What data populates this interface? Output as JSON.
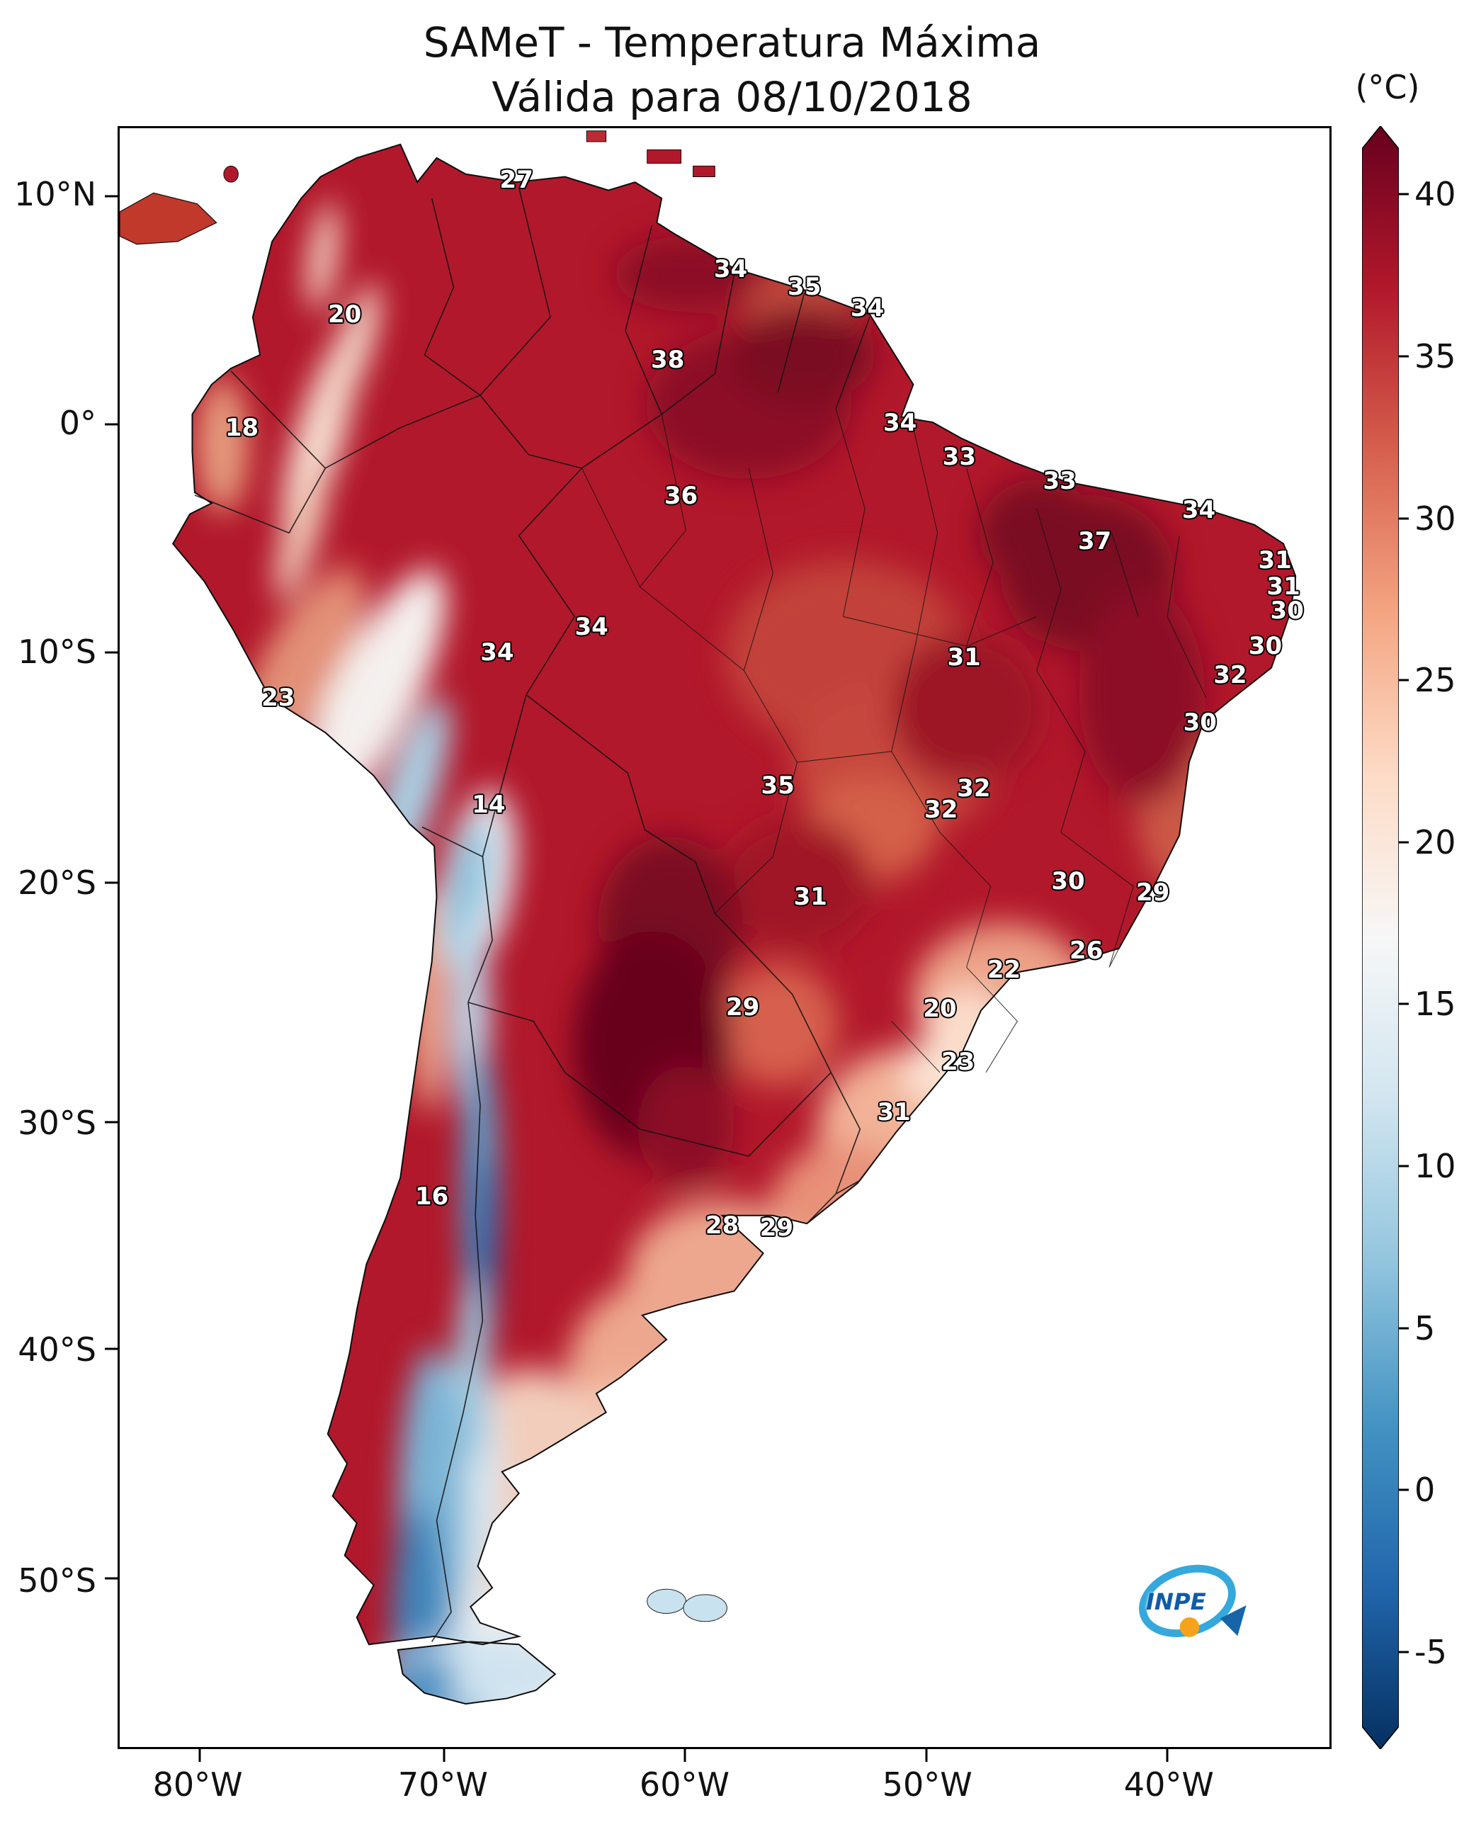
{
  "title": {
    "line1": "SAMeT - Temperatura Máxima",
    "line2": "Válida para 08/10/2018"
  },
  "colorbar": {
    "unit_label": "(°C)",
    "ticks": [
      "40",
      "35",
      "30",
      "25",
      "20",
      "15",
      "10",
      "5",
      "0",
      "-5"
    ],
    "colors": [
      "#67001f",
      "#b2182b",
      "#d6604d",
      "#f4a582",
      "#fddbc7",
      "#f7f7f7",
      "#d1e5f0",
      "#92c5de",
      "#4393c3",
      "#2166ac",
      "#053061"
    ]
  },
  "axes": {
    "lat_ticks": [
      "10°N",
      "0°",
      "10°S",
      "20°S",
      "30°S",
      "40°S",
      "50°S"
    ],
    "lon_ticks": [
      "80°W",
      "70°W",
      "60°W",
      "50°W",
      "40°W"
    ]
  },
  "map_colors": {
    "hottest": "#67001f",
    "hot": "#b2182b",
    "warm": "#d6604d",
    "mild": "#fddbc7",
    "neutral": "#f7f7f7",
    "cool": "#92c5de",
    "cold": "#2166ac",
    "coldest": "#053061"
  },
  "chart_data": {
    "type": "heatmap",
    "title": "SAMeT - Temperatura Máxima",
    "subtitle": "Válida para 08/10/2018",
    "unit": "°C",
    "region": "South America",
    "colorbar_range": [
      -5,
      40
    ],
    "point_labels": [
      {
        "value": 27,
        "x": 32.8,
        "y": 3.2
      },
      {
        "value": 34,
        "x": 50.5,
        "y": 8.7
      },
      {
        "value": 35,
        "x": 56.6,
        "y": 9.8
      },
      {
        "value": 34,
        "x": 61.8,
        "y": 11.1
      },
      {
        "value": 20,
        "x": 18.6,
        "y": 11.5
      },
      {
        "value": 38,
        "x": 45.3,
        "y": 14.3
      },
      {
        "value": 18,
        "x": 10.1,
        "y": 18.5
      },
      {
        "value": 34,
        "x": 64.5,
        "y": 18.2
      },
      {
        "value": 33,
        "x": 69.4,
        "y": 20.3
      },
      {
        "value": 33,
        "x": 77.7,
        "y": 21.8
      },
      {
        "value": 34,
        "x": 89.2,
        "y": 23.6
      },
      {
        "value": 36,
        "x": 46.4,
        "y": 22.7
      },
      {
        "value": 37,
        "x": 80.6,
        "y": 25.5
      },
      {
        "value": 31,
        "x": 95.5,
        "y": 26.7
      },
      {
        "value": 31,
        "x": 96.2,
        "y": 28.3
      },
      {
        "value": 30,
        "x": 96.5,
        "y": 29.8
      },
      {
        "value": 34,
        "x": 39.0,
        "y": 30.8
      },
      {
        "value": 34,
        "x": 31.2,
        "y": 32.4
      },
      {
        "value": 31,
        "x": 69.8,
        "y": 32.7
      },
      {
        "value": 30,
        "x": 94.7,
        "y": 32.0
      },
      {
        "value": 32,
        "x": 91.8,
        "y": 33.8
      },
      {
        "value": 23,
        "x": 13.1,
        "y": 35.2
      },
      {
        "value": 30,
        "x": 89.3,
        "y": 36.7
      },
      {
        "value": 14,
        "x": 30.5,
        "y": 41.8
      },
      {
        "value": 35,
        "x": 54.4,
        "y": 40.6
      },
      {
        "value": 32,
        "x": 70.6,
        "y": 40.8
      },
      {
        "value": 32,
        "x": 67.9,
        "y": 42.1
      },
      {
        "value": 30,
        "x": 78.4,
        "y": 46.5
      },
      {
        "value": 29,
        "x": 85.4,
        "y": 47.2
      },
      {
        "value": 31,
        "x": 57.1,
        "y": 47.5
      },
      {
        "value": 26,
        "x": 79.9,
        "y": 50.8
      },
      {
        "value": 22,
        "x": 73.1,
        "y": 52.0
      },
      {
        "value": 29,
        "x": 51.5,
        "y": 54.3
      },
      {
        "value": 20,
        "x": 67.8,
        "y": 54.4
      },
      {
        "value": 23,
        "x": 69.3,
        "y": 57.7
      },
      {
        "value": 31,
        "x": 64.0,
        "y": 60.8
      },
      {
        "value": 16,
        "x": 25.8,
        "y": 66.0
      },
      {
        "value": 28,
        "x": 49.8,
        "y": 67.8
      },
      {
        "value": 29,
        "x": 54.3,
        "y": 67.9
      }
    ]
  },
  "logo": {
    "text": "INPE"
  }
}
